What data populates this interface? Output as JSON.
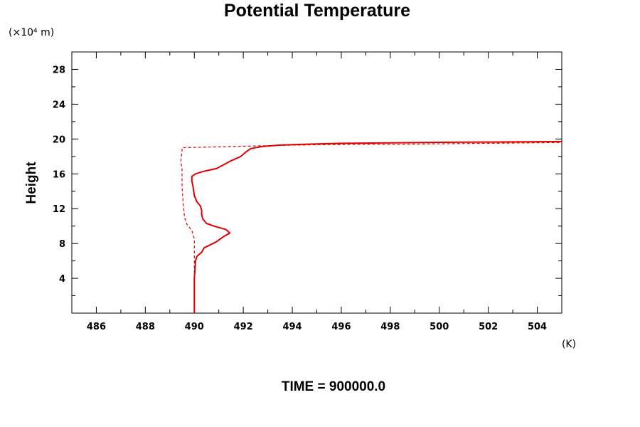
{
  "chart_data": {
    "type": "line",
    "title": "Potential Temperature",
    "ylabel": "Height",
    "y_unit": "(×10⁴ m)",
    "x_unit": "(K)",
    "footer": "TIME = 900000.0",
    "xlim": [
      485,
      505
    ],
    "ylim": [
      0,
      30
    ],
    "x_ticks": [
      486,
      488,
      490,
      492,
      494,
      496,
      498,
      500,
      502,
      504
    ],
    "y_ticks": [
      4,
      8,
      12,
      16,
      20,
      24,
      28
    ],
    "grid": false,
    "line_color": "#e00000",
    "series": [
      {
        "style": "solid",
        "points": [
          [
            490.0,
            0.0
          ],
          [
            490.0,
            4.0
          ],
          [
            490.05,
            6.0
          ],
          [
            490.1,
            6.5
          ],
          [
            490.3,
            7.0
          ],
          [
            490.4,
            7.5
          ],
          [
            490.9,
            8.2
          ],
          [
            491.2,
            8.8
          ],
          [
            491.45,
            9.2
          ],
          [
            491.3,
            9.6
          ],
          [
            490.8,
            10.0
          ],
          [
            490.5,
            10.3
          ],
          [
            490.35,
            10.8
          ],
          [
            490.3,
            11.3
          ],
          [
            490.3,
            11.8
          ],
          [
            490.25,
            12.3
          ],
          [
            490.1,
            12.8
          ],
          [
            490.0,
            13.5
          ],
          [
            489.95,
            14.5
          ],
          [
            489.9,
            15.2
          ],
          [
            489.9,
            15.7
          ],
          [
            490.05,
            16.0
          ],
          [
            490.4,
            16.3
          ],
          [
            490.9,
            16.6
          ],
          [
            491.1,
            16.9
          ],
          [
            491.3,
            17.2
          ],
          [
            491.5,
            17.5
          ],
          [
            491.9,
            18.0
          ],
          [
            492.1,
            18.5
          ],
          [
            492.3,
            18.9
          ],
          [
            492.8,
            19.15
          ],
          [
            493.5,
            19.3
          ],
          [
            494.5,
            19.4
          ],
          [
            496.0,
            19.5
          ],
          [
            498.0,
            19.55
          ],
          [
            500.0,
            19.62
          ],
          [
            502.0,
            19.65
          ],
          [
            505.0,
            19.7
          ]
        ]
      },
      {
        "style": "dashed",
        "points": [
          [
            490.0,
            0.0
          ],
          [
            490.0,
            8.5
          ],
          [
            489.9,
            9.5
          ],
          [
            489.7,
            10.2
          ],
          [
            489.6,
            11.0
          ],
          [
            489.55,
            12.5
          ],
          [
            489.5,
            14.5
          ],
          [
            489.5,
            16.5
          ],
          [
            489.45,
            17.5
          ],
          [
            489.5,
            18.5
          ],
          [
            489.5,
            19.0
          ],
          [
            491.0,
            19.1
          ],
          [
            492.5,
            19.2
          ],
          [
            495.0,
            19.35
          ],
          [
            498.0,
            19.4
          ],
          [
            502.0,
            19.5
          ],
          [
            505.0,
            19.6
          ]
        ]
      }
    ]
  }
}
